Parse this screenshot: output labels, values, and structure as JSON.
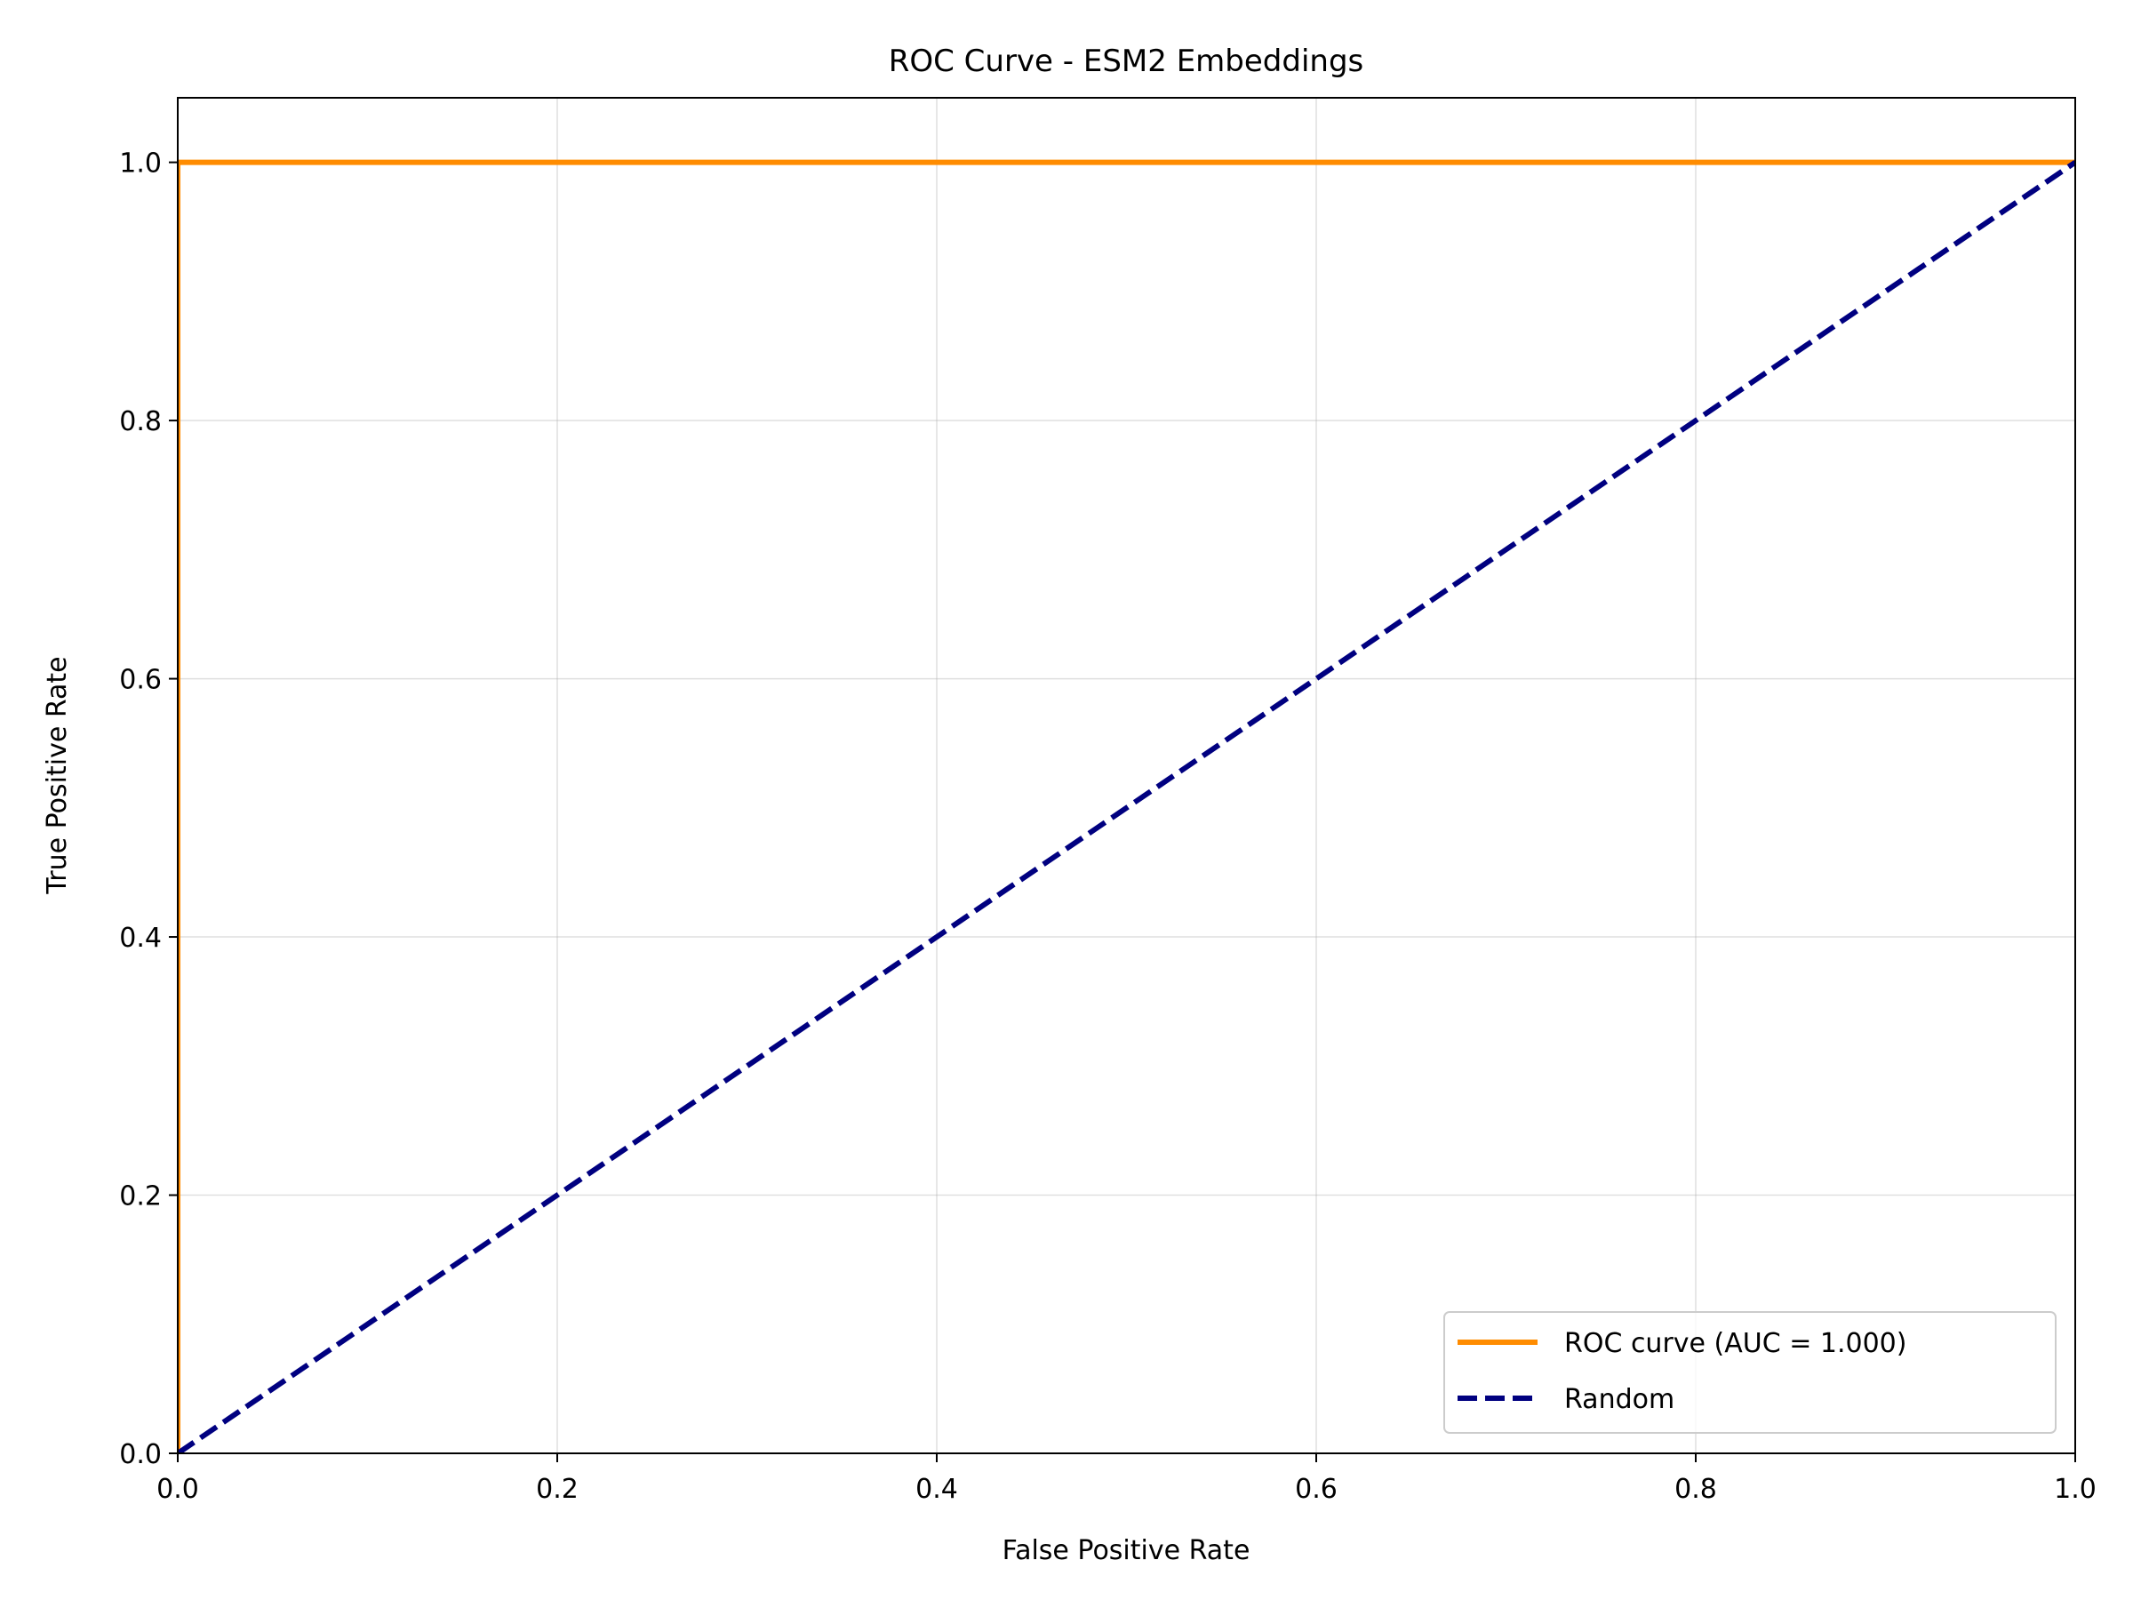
{
  "chart_data": {
    "type": "line",
    "title": "ROC Curve - ESM2 Embeddings",
    "xlabel": "False Positive Rate",
    "ylabel": "True Positive Rate",
    "xlim": [
      0.0,
      1.0
    ],
    "ylim": [
      0.0,
      1.05
    ],
    "xticks": [
      0.0,
      0.2,
      0.4,
      0.6,
      0.8,
      1.0
    ],
    "yticks": [
      0.0,
      0.2,
      0.4,
      0.6,
      0.8,
      1.0
    ],
    "xtick_labels": [
      "0.0",
      "0.2",
      "0.4",
      "0.6",
      "0.8",
      "1.0"
    ],
    "ytick_labels": [
      "0.0",
      "0.2",
      "0.4",
      "0.6",
      "0.8",
      "1.0"
    ],
    "grid": true,
    "legend_position": "lower-right",
    "series": [
      {
        "name": "ROC curve (AUC = 1.000)",
        "color": "#ff8c00",
        "style": "solid",
        "x": [
          0.0,
          0.0,
          1.0
        ],
        "y": [
          0.0,
          1.0,
          1.0
        ]
      },
      {
        "name": "Random",
        "color": "#000080",
        "style": "dashed",
        "x": [
          0.0,
          1.0
        ],
        "y": [
          0.0,
          1.0
        ]
      }
    ]
  }
}
